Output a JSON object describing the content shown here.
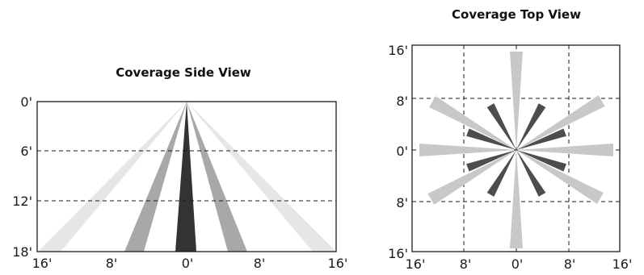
{
  "side_view": {
    "title": "Coverage Side View",
    "y_ticks": [
      "0'",
      "6'",
      "12'",
      "18'"
    ],
    "x_ticks": [
      "16'",
      "8'",
      "0'",
      "8'",
      "16'"
    ]
  },
  "top_view": {
    "title": "Coverage Top View",
    "y_ticks": [
      "16'",
      "8'",
      "0'",
      "8'",
      "16'"
    ],
    "x_ticks": [
      "16'",
      "8'",
      "0'",
      "8'",
      "16'"
    ]
  },
  "colors": {
    "frame": "#1a1a1a",
    "grid": "#1a1a1a",
    "beam_center": "#333333",
    "beam_mid": "#a8a8a8",
    "beam_outer": "#e6e6e6",
    "top_long": "#c8c8c8",
    "top_short": "#4d4d4d"
  }
}
